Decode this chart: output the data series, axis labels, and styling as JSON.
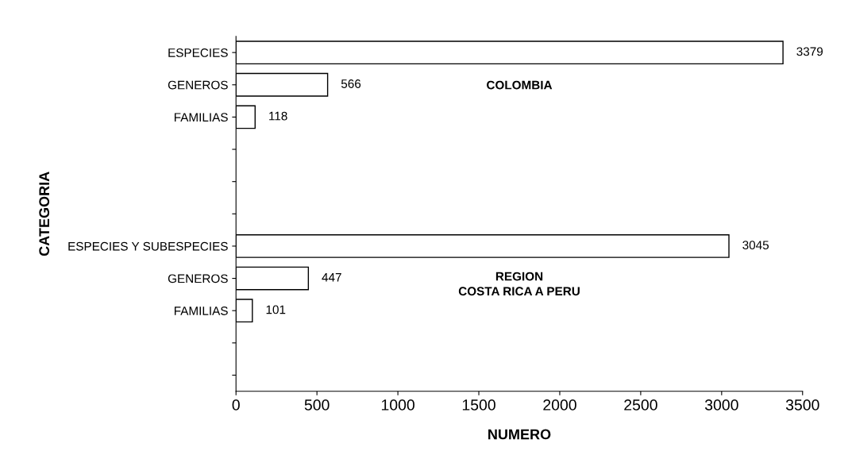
{
  "chart_data": {
    "type": "bar",
    "orientation": "horizontal",
    "xlabel": "NUMERO",
    "ylabel": "CATEGORIA",
    "categories": [
      "ESPECIES",
      "GENEROS",
      "FAMILIAS",
      null,
      null,
      null,
      "ESPECIES Y SUBESPECIES",
      "GENEROS",
      "FAMILIAS",
      null,
      null
    ],
    "values": [
      3379,
      566,
      118,
      null,
      null,
      null,
      3045,
      447,
      101,
      null,
      null
    ],
    "color": "#ffffff",
    "xlim": [
      0,
      3500
    ],
    "xticks": [
      0,
      500,
      1000,
      1500,
      2000,
      2500,
      3000,
      3500
    ],
    "data_labels": true,
    "grid": false,
    "legend": false,
    "annotations": [
      "COLOMBIA",
      "REGION\nCOSTA RICA A PERU"
    ]
  }
}
